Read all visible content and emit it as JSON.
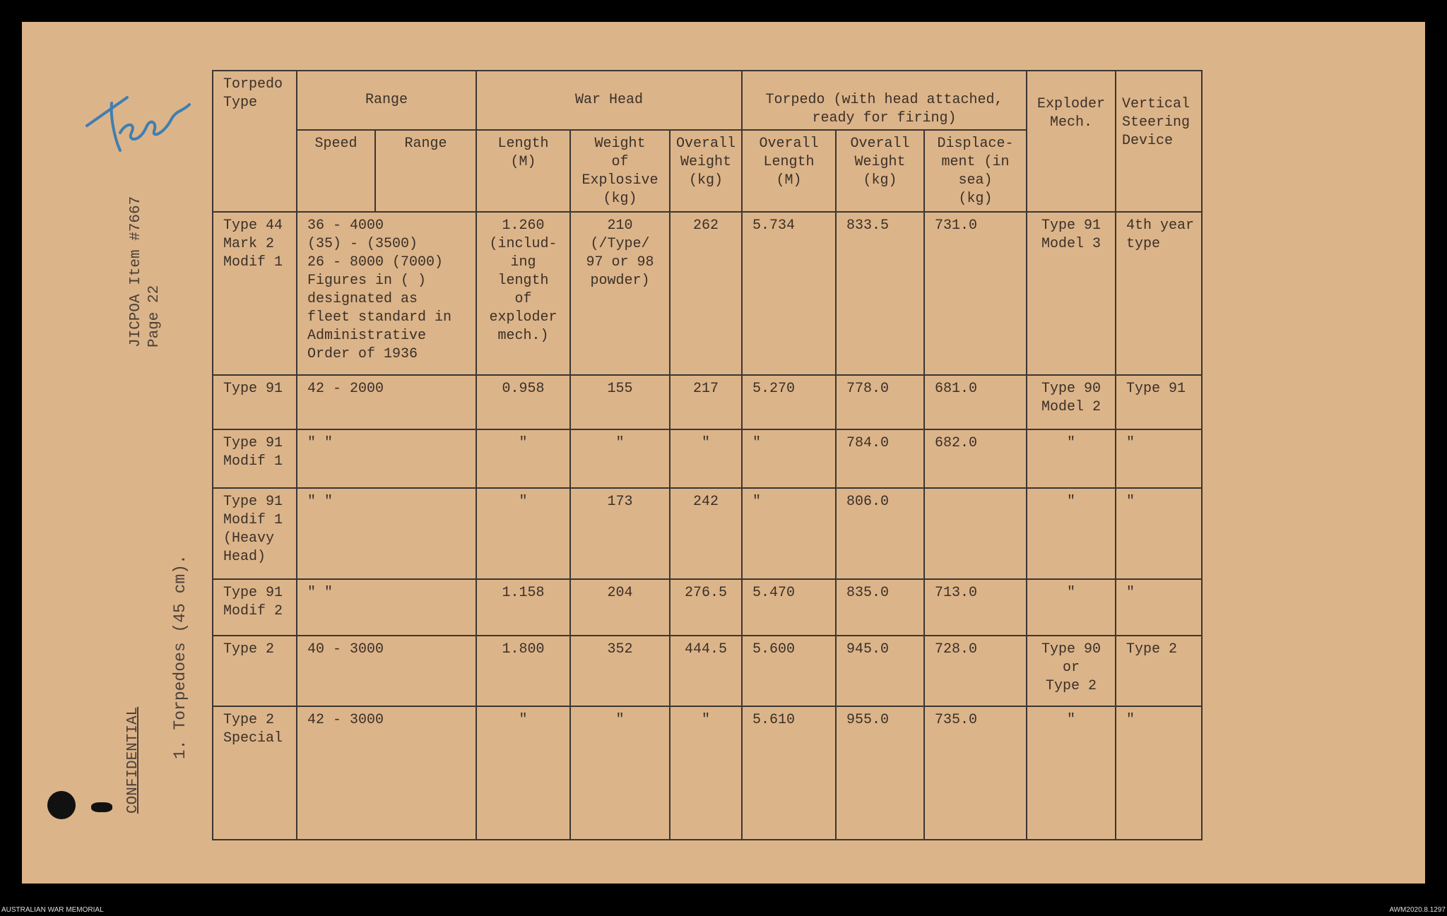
{
  "document": {
    "handwritten_note": "Tech",
    "reference": "JICPOA Item #7667\nPage 22",
    "section_title": "1. Torpedoes (45 cm).",
    "classification": "CONFIDENTIAL"
  },
  "table": {
    "group_headers": {
      "torpedo_type": "Torpedo\nType",
      "range": "Range",
      "war_head": "War Head",
      "torpedo": "Torpedo (with head attached,\nready for firing)",
      "exploder": "Exploder\nMech.",
      "steering": "Vertical\nSteering\nDevice"
    },
    "sub_headers": [
      "Speed",
      "Range",
      "Length\n(M)",
      "Weight\nof\nExplosive\n(kg)",
      "Overall\nWeight\n(kg)",
      "Overall\nLength\n(M)",
      "Overall\nWeight\n(kg)",
      "Displace-\nment (in\nsea)\n(kg)"
    ],
    "rows": [
      [
        "Type 44\nMark 2\nModif 1",
        "36 - 4000\n(35) - (3500)\n26 - 8000 (7000)\nFigures in ( )\ndesignated as\nfleet standard in\nAdministrative\nOrder of 1936",
        "1.260\n(includ-\ning\nlength\nof\nexploder\nmech.)",
        "210\n(/Type/\n97 or 98\npowder)",
        "262",
        "5.734",
        "833.5",
        "731.0",
        "Type 91\nModel 3",
        "4th year\ntype"
      ],
      [
        "Type 91",
        "42 - 2000",
        "0.958",
        "155",
        "217",
        "5.270",
        "778.0",
        "681.0",
        "Type 90\nModel 2",
        "Type 91"
      ],
      [
        "Type 91\nModif 1",
        "\"    \"",
        "\"",
        "\"",
        "\"",
        "\"",
        "784.0",
        "682.0",
        "\"",
        "\""
      ],
      [
        "Type 91\nModif 1\n(Heavy\nHead)",
        "\"    \"",
        "\"",
        "173",
        "242",
        "\"",
        "806.0",
        "",
        "\"",
        "\""
      ],
      [
        "Type 91\nModif 2",
        "\"    \"",
        "1.158",
        "204",
        "276.5",
        "5.470",
        "835.0",
        "713.0",
        "\"",
        "\""
      ],
      [
        "Type 2",
        "40  - 3000",
        "1.800",
        "352",
        "444.5",
        "5.600",
        "945.0",
        "728.0",
        "Type 90\nor\nType 2",
        "Type 2"
      ],
      [
        "Type 2\nSpecial",
        "42  - 3000",
        "\"",
        "\"",
        "\"",
        "5.610",
        "955.0",
        "735.0",
        "\"",
        "\""
      ]
    ]
  },
  "footer": {
    "left": "AUSTRALIAN WAR MEMORIAL",
    "right": "AWM2020.8.1297"
  },
  "colors": {
    "paper": "#dcb48a",
    "ink": "#3a3026",
    "handwriting": "#3f7fb0"
  }
}
